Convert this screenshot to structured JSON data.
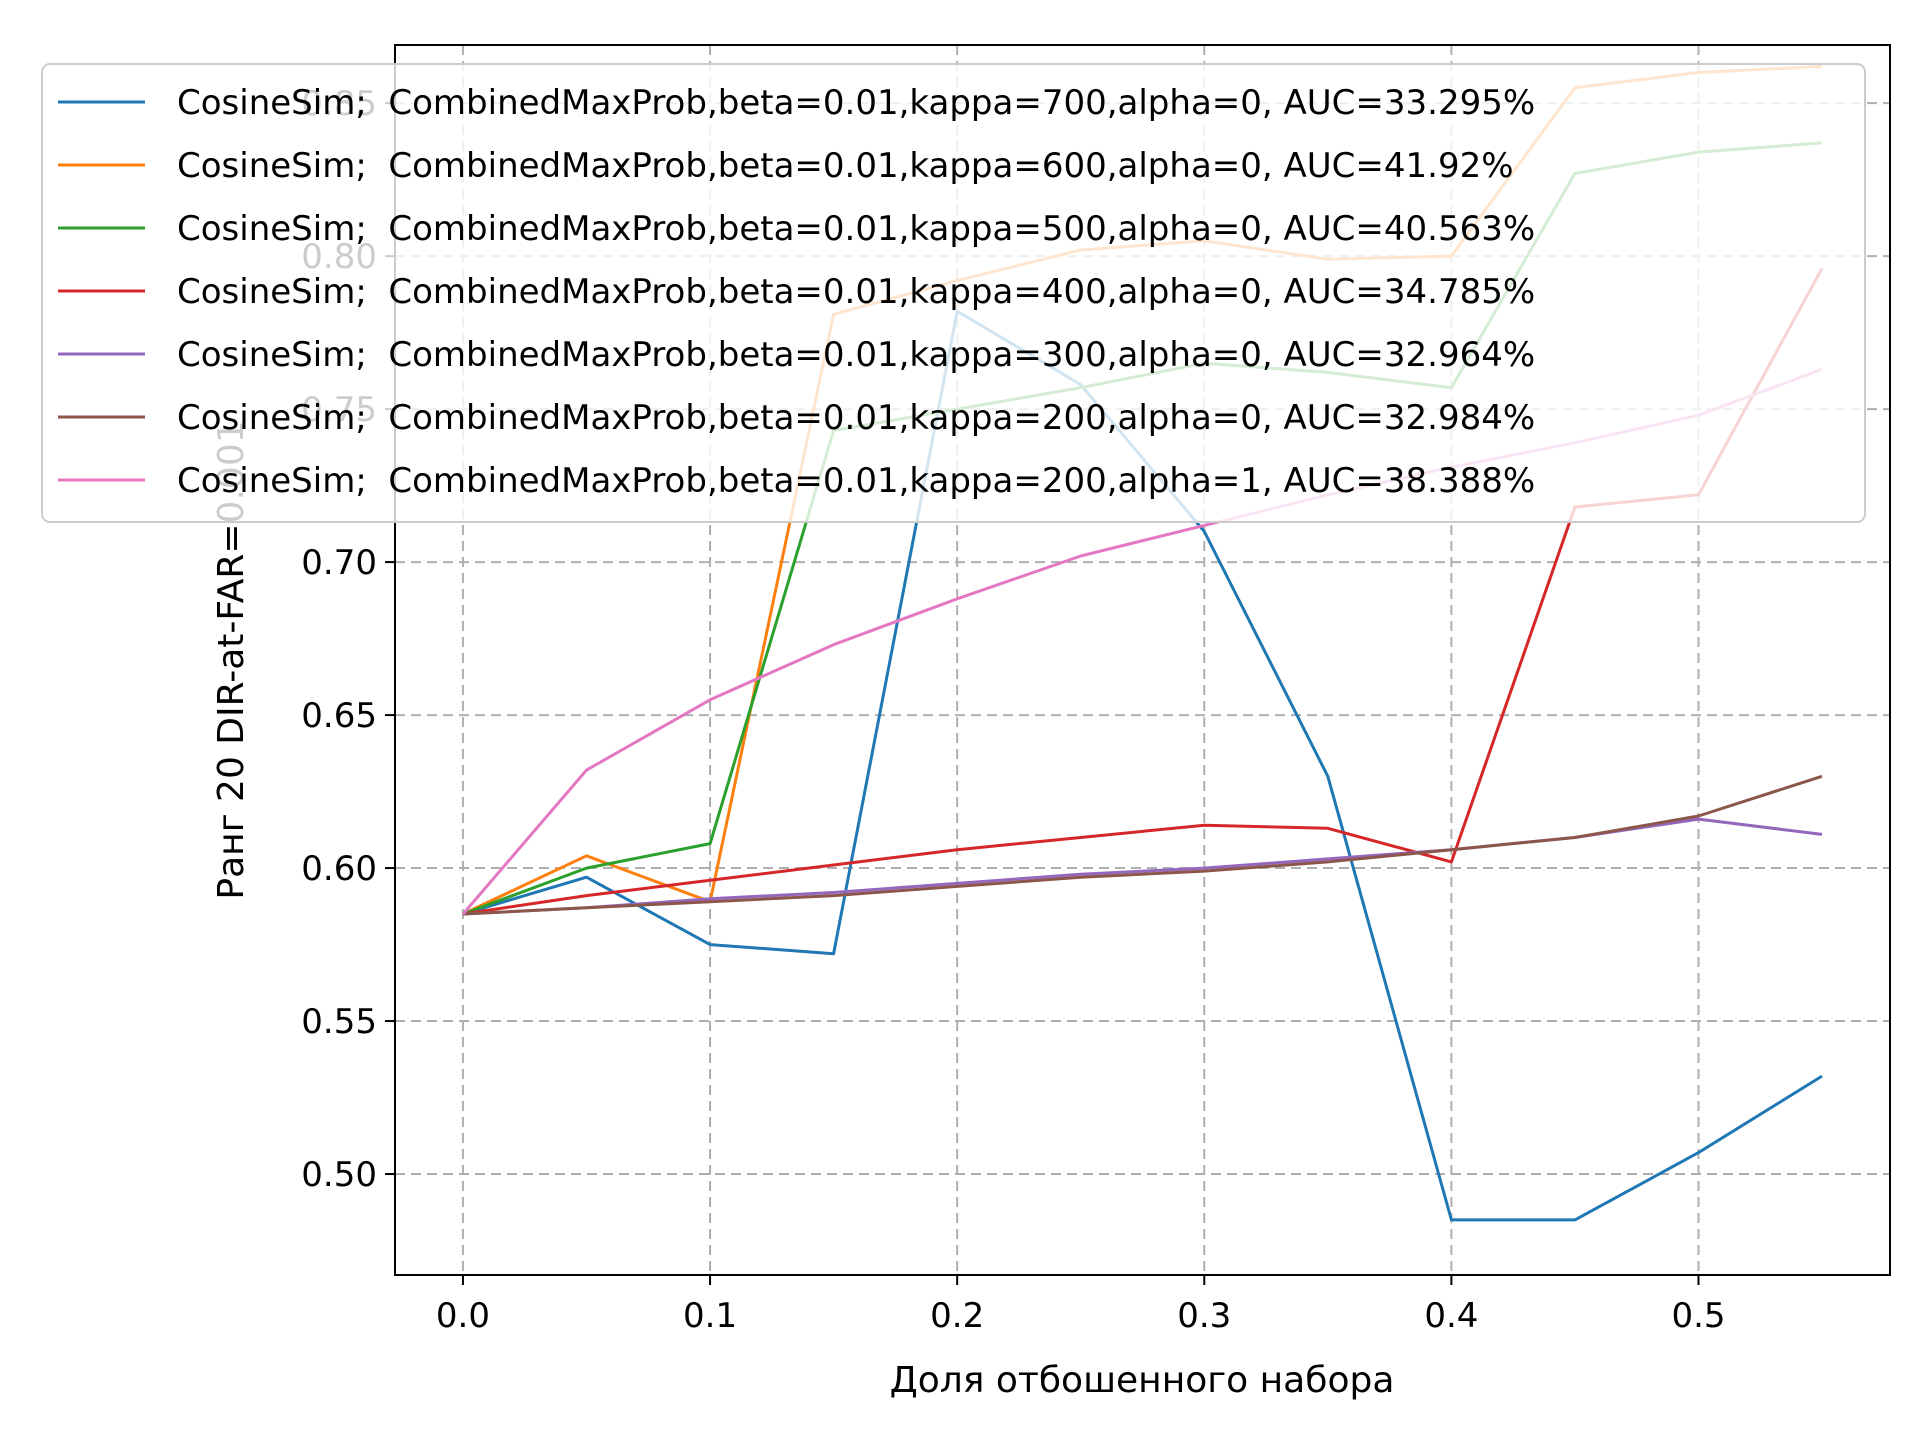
{
  "chart_data": {
    "type": "line",
    "xlabel": "Доля отбошенного набора",
    "ylabel": "Ранг 20 DIR-at-FAR=0.001",
    "xlim": [
      -0.0275,
      0.5775
    ],
    "ylim": [
      0.467,
      0.869
    ],
    "xticks": [
      0.0,
      0.1,
      0.2,
      0.3,
      0.4,
      0.5
    ],
    "xtick_labels": [
      "0.0",
      "0.1",
      "0.2",
      "0.3",
      "0.4",
      "0.5"
    ],
    "yticks": [
      0.5,
      0.55,
      0.6,
      0.65,
      0.7,
      0.75,
      0.8,
      0.85
    ],
    "ytick_labels": [
      "0.50",
      "0.55",
      "0.60",
      "0.65",
      "0.70",
      "0.75",
      "0.80",
      "0.85"
    ],
    "grid": true,
    "legend_position": "upper-left",
    "x": [
      0.0,
      0.05,
      0.1,
      0.15,
      0.2,
      0.25,
      0.3,
      0.35,
      0.4,
      0.45,
      0.5,
      0.55
    ],
    "series": [
      {
        "name": "CosineSim;  CombinedMaxProb,beta=0.01,kappa=700,alpha=0, AUC=33.295%",
        "color": "#1f77b4",
        "values": [
          0.585,
          0.597,
          0.575,
          0.572,
          0.782,
          0.758,
          0.71,
          0.63,
          0.485,
          0.485,
          0.507,
          0.532
        ]
      },
      {
        "name": "CosineSim;  CombinedMaxProb,beta=0.01,kappa=600,alpha=0, AUC=41.92%",
        "color": "#ff7f0e",
        "values": [
          0.585,
          0.604,
          0.589,
          0.781,
          0.792,
          0.802,
          0.805,
          0.799,
          0.8,
          0.855,
          0.86,
          0.862
        ]
      },
      {
        "name": "CosineSim;  CombinedMaxProb,beta=0.01,kappa=500,alpha=0, AUC=40.563%",
        "color": "#2ca02c",
        "values": [
          0.585,
          0.6,
          0.608,
          0.743,
          0.75,
          0.757,
          0.765,
          0.762,
          0.757,
          0.827,
          0.834,
          0.837
        ]
      },
      {
        "name": "CosineSim;  CombinedMaxProb,beta=0.01,kappa=400,alpha=0, AUC=34.785%",
        "color": "#d62728",
        "values": [
          0.585,
          0.591,
          0.596,
          0.601,
          0.606,
          0.61,
          0.614,
          0.613,
          0.602,
          0.718,
          0.722,
          0.796
        ]
      },
      {
        "name": "CosineSim;  CombinedMaxProb,beta=0.01,kappa=300,alpha=0, AUC=32.964%",
        "color": "#9467bd",
        "values": [
          0.585,
          0.587,
          0.59,
          0.592,
          0.595,
          0.598,
          0.6,
          0.603,
          0.606,
          0.61,
          0.616,
          0.611
        ]
      },
      {
        "name": "CosineSim;  CombinedMaxProb,beta=0.01,kappa=200,alpha=0, AUC=32.984%",
        "color": "#8c564b",
        "values": [
          0.585,
          0.587,
          0.589,
          0.591,
          0.594,
          0.597,
          0.599,
          0.602,
          0.606,
          0.61,
          0.617,
          0.63
        ]
      },
      {
        "name": "CosineSim;  CombinedMaxProb,beta=0.01,kappa=200,alpha=1, AUC=38.388%",
        "color": "#e377c2",
        "values": [
          0.585,
          0.632,
          0.655,
          0.673,
          0.688,
          0.702,
          0.712,
          0.722,
          0.731,
          0.739,
          0.748,
          0.763
        ]
      }
    ]
  }
}
